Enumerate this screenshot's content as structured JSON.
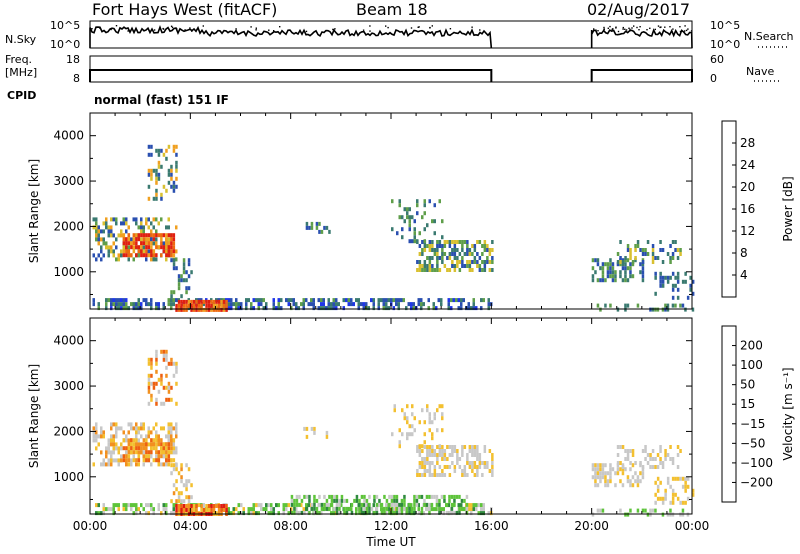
{
  "header": {
    "station": "Fort Hays West (fitACF)",
    "beam": "Beam 18",
    "date": "02/Aug/2017"
  },
  "summary_panels": {
    "nsky": {
      "left_label": "N.Sky",
      "ticks": [
        "10^5",
        "10^0"
      ],
      "right_label": "N.Search",
      "right_ticks": [
        "10^5",
        "10^0"
      ]
    },
    "freq": {
      "left_label": "Freq.",
      "left_unit": "[MHz]",
      "ticks": [
        "18",
        "8"
      ],
      "right_label": "Nave",
      "right_ticks": [
        "60",
        "0"
      ]
    },
    "cpid": {
      "label": "CPID",
      "mode_text": "normal (fast) 151 IF"
    }
  },
  "chart_data": [
    {
      "type": "heatmap",
      "name": "power",
      "ylabel": "Slant Range [km]",
      "yticks": [
        1000,
        2000,
        3000,
        4000
      ],
      "ylim": [
        180,
        4500
      ],
      "xlim_hours": [
        0,
        24
      ],
      "colorbar": {
        "label": "Power [dB]",
        "ticks": [
          "4",
          "8",
          "12",
          "16",
          "20",
          "24",
          "28"
        ],
        "colors": [
          "#1f36e8",
          "#2a4fb0",
          "#3a7a70",
          "#5f9e4a",
          "#d8c030",
          "#f0a020",
          "#ee6a10",
          "#e02010"
        ]
      },
      "observed_intervals_hours": [
        [
          0,
          16
        ],
        [
          20,
          24
        ]
      ]
    },
    {
      "type": "heatmap",
      "name": "velocity",
      "ylabel": "Slant Range [km]",
      "yticks": [
        1000,
        2000,
        3000,
        4000
      ],
      "ylim": [
        180,
        4500
      ],
      "xlim_hours": [
        0,
        24
      ],
      "colorbar": {
        "label": "Velocity [m s⁻¹]",
        "ticks": [
          "200",
          "100",
          "50",
          "15",
          "−15",
          "−50",
          "−100",
          "−200"
        ],
        "colors": [
          "#1e2fa6",
          "#2b62c4",
          "#2f8a3e",
          "#5ec43a",
          "#c8c8c8",
          "#f3c030",
          "#f29020",
          "#ee6010",
          "#e01a10"
        ]
      },
      "observed_intervals_hours": [
        [
          0,
          16
        ],
        [
          20,
          24
        ]
      ]
    }
  ],
  "x_axis": {
    "ticks": [
      "00:00",
      "04:00",
      "08:00",
      "12:00",
      "16:00",
      "20:00",
      "00:00"
    ],
    "label": "Time UT"
  }
}
